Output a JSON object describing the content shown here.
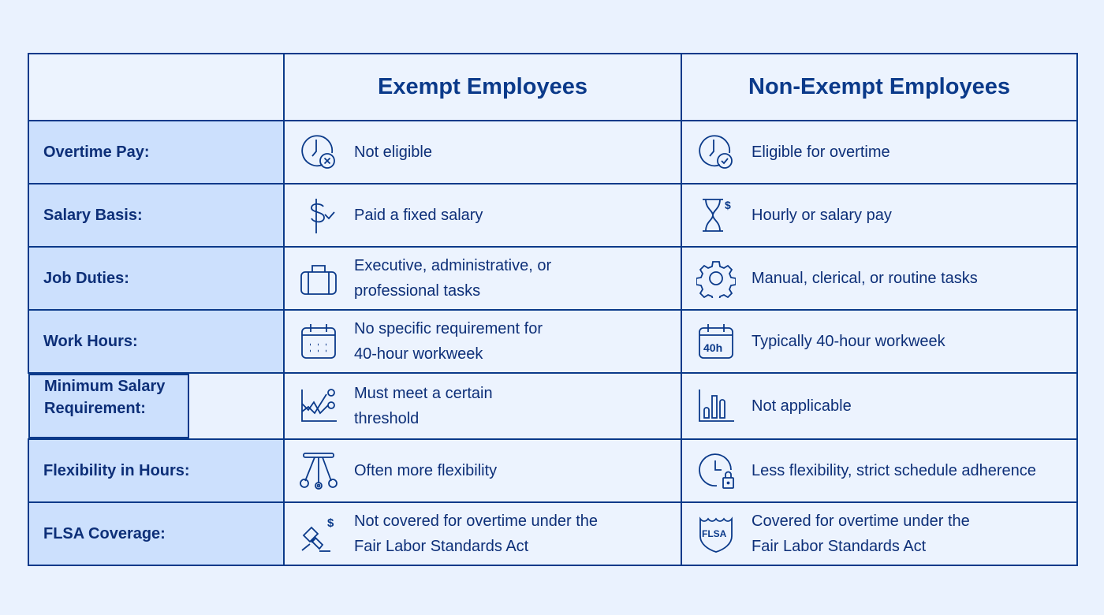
{
  "headers": [
    "",
    "Exempt Employees",
    "Non-Exempt Employees"
  ],
  "rows": [
    {
      "label": "Overtime Pay:",
      "exempt": {
        "icon": "clock-x-icon",
        "text": "Not eligible"
      },
      "nonexempt": {
        "icon": "clock-check-icon",
        "text": "Eligible for overtime"
      }
    },
    {
      "label": "Salary Basis:",
      "exempt": {
        "icon": "dollar-check-icon",
        "text": "Paid a fixed salary"
      },
      "nonexempt": {
        "icon": "hourglass-dollar-icon",
        "text": "Hourly or salary pay"
      }
    },
    {
      "label": "Job Duties:",
      "exempt": {
        "icon": "briefcase-icon",
        "text": "Executive, administrative, or professional tasks"
      },
      "nonexempt": {
        "icon": "gear-icon",
        "text": "Manual, clerical, or routine tasks"
      }
    },
    {
      "label": "Work Hours:",
      "exempt": {
        "icon": "calendar-icon",
        "text": "No specific requirement for 40-hour workweek"
      },
      "nonexempt": {
        "icon": "calendar-40h-icon",
        "text": "Typically 40-hour workweek",
        "icon_text": "40h"
      }
    },
    {
      "label": "Minimum Salary Requirement:",
      "exempt": {
        "icon": "line-chart-icon",
        "text": "Must meet a certain threshold"
      },
      "nonexempt": {
        "icon": "bar-chart-icon",
        "text": "Not applicable"
      }
    },
    {
      "label": "Flexibility in Hours:",
      "exempt": {
        "icon": "pendulum-icon",
        "text": "Often more flexibility"
      },
      "nonexempt": {
        "icon": "clock-lock-icon",
        "text": "Less flexibility, strict schedule adherence"
      }
    },
    {
      "label": "FLSA Coverage:",
      "exempt": {
        "icon": "gavel-dollar-icon",
        "text": "Not covered for overtime under the Fair Labor Standards Act"
      },
      "nonexempt": {
        "icon": "flsa-shield-icon",
        "text": "Covered for overtime under the Fair Labor Standards Act",
        "icon_text": "FLSA"
      }
    }
  ],
  "colors": {
    "border": "#0b3a8a",
    "label_bg": "#cce0fd",
    "cell_bg": "#ecf3fe",
    "page_bg": "#eaf2fe",
    "text": "#0d2f78"
  }
}
